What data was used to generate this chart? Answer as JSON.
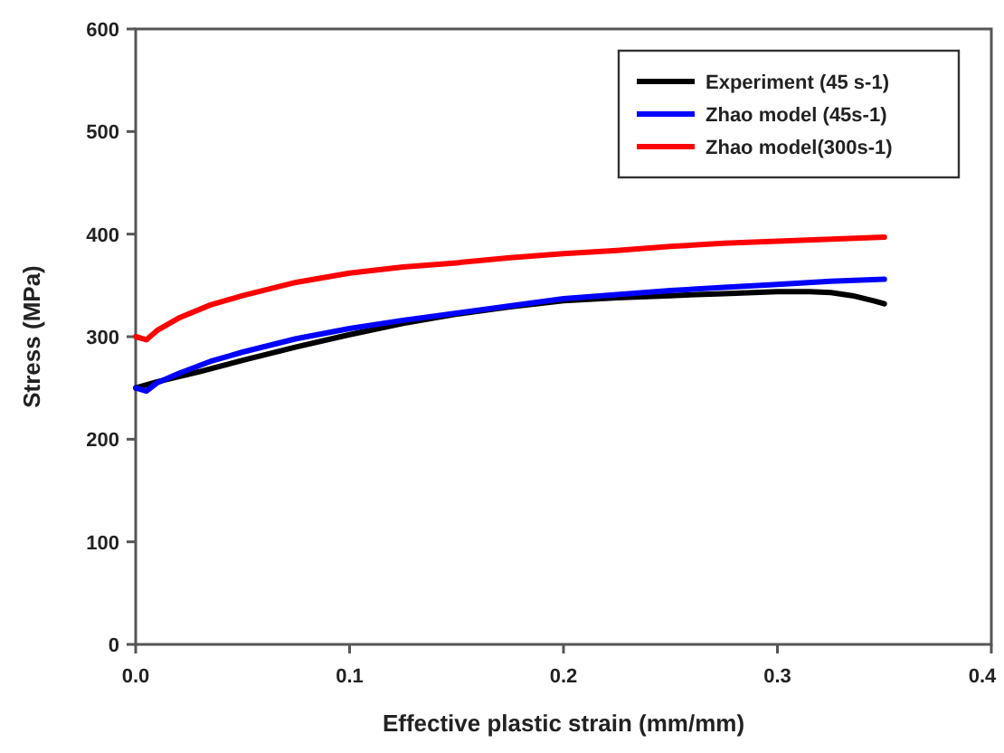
{
  "chart_data": {
    "type": "line",
    "xlabel": "Effective plastic strain (mm/mm)",
    "ylabel": "Stress (MPa)",
    "xlim": [
      0,
      0.4
    ],
    "xticks": [
      {
        "value": 0,
        "label": "0.0"
      },
      0.1,
      0.2,
      0.3,
      0.4
    ],
    "ylim": [
      0,
      600
    ],
    "yticks": [
      0,
      100,
      200,
      300,
      400,
      500,
      600
    ],
    "grid": false,
    "legend": "top right",
    "line_style": "solid",
    "marker": "none",
    "series": [
      {
        "name": "Experiment (45 s-1)",
        "color": "#000000",
        "x": [
          0,
          0.01,
          0.03,
          0.05,
          0.075,
          0.1,
          0.125,
          0.15,
          0.175,
          0.2,
          0.225,
          0.25,
          0.275,
          0.3,
          0.315,
          0.325,
          0.335,
          0.345,
          0.35
        ],
        "values": [
          250,
          256,
          266,
          277,
          290,
          302,
          313,
          322,
          329,
          335,
          338,
          340,
          342,
          344,
          344,
          343,
          340,
          335,
          332
        ]
      },
      {
        "name": "Zhao model (45s-1)",
        "color": "#0000ff",
        "x": [
          0,
          0.005,
          0.01,
          0.02,
          0.035,
          0.05,
          0.075,
          0.1,
          0.125,
          0.15,
          0.175,
          0.2,
          0.225,
          0.25,
          0.275,
          0.3,
          0.325,
          0.35
        ],
        "values": [
          250,
          247,
          255,
          264,
          276,
          285,
          298,
          308,
          316,
          323,
          330,
          337,
          341,
          345,
          348,
          351,
          354,
          356
        ]
      },
      {
        "name": "Zhao model(300s-1)",
        "color": "#ff0000",
        "x": [
          0,
          0.005,
          0.01,
          0.02,
          0.035,
          0.05,
          0.075,
          0.1,
          0.125,
          0.15,
          0.175,
          0.2,
          0.225,
          0.25,
          0.275,
          0.3,
          0.325,
          0.35
        ],
        "values": [
          300,
          297,
          306,
          318,
          331,
          340,
          353,
          362,
          368,
          372,
          377,
          381,
          384,
          388,
          391,
          393,
          395,
          397
        ]
      }
    ]
  }
}
